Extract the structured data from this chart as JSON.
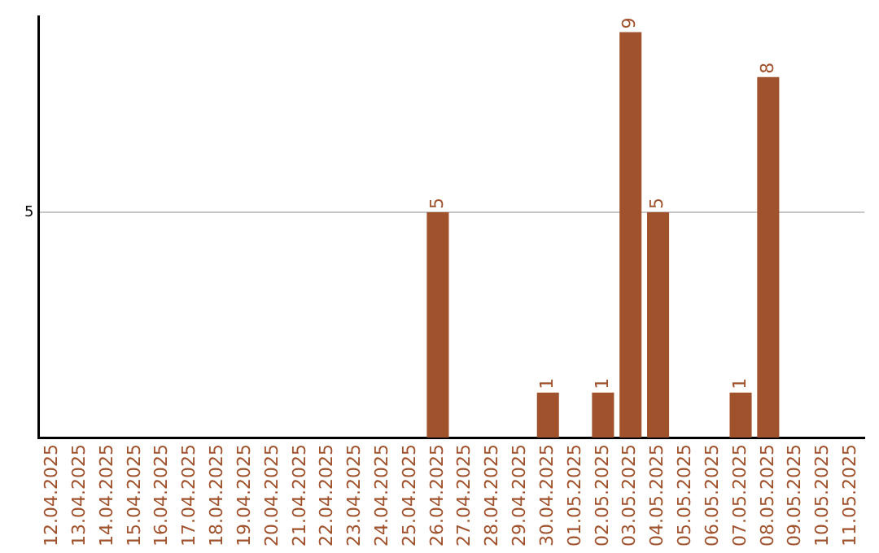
{
  "chart_data": {
    "type": "bar",
    "categories": [
      "12.04.2025",
      "13.04.2025",
      "14.04.2025",
      "15.04.2025",
      "16.04.2025",
      "17.04.2025",
      "18.04.2025",
      "19.04.2025",
      "20.04.2025",
      "21.04.2025",
      "22.04.2025",
      "23.04.2025",
      "24.04.2025",
      "25.04.2025",
      "26.04.2025",
      "27.04.2025",
      "28.04.2025",
      "29.04.2025",
      "30.04.2025",
      "01.05.2025",
      "02.05.2025",
      "03.05.2025",
      "04.05.2025",
      "05.05.2025",
      "06.05.2025",
      "07.05.2025",
      "08.05.2025",
      "09.05.2025",
      "10.05.2025",
      "11.05.2025"
    ],
    "values": [
      null,
      null,
      null,
      null,
      null,
      null,
      null,
      null,
      null,
      null,
      null,
      null,
      null,
      null,
      5,
      null,
      null,
      null,
      1,
      null,
      1,
      9,
      5,
      null,
      null,
      1,
      8,
      null,
      null,
      null
    ],
    "data_labels": true,
    "color": "#a0522d",
    "ylim": [
      0,
      9.35
    ],
    "yticks": [
      5
    ],
    "grid": "y",
    "legend": false
  }
}
